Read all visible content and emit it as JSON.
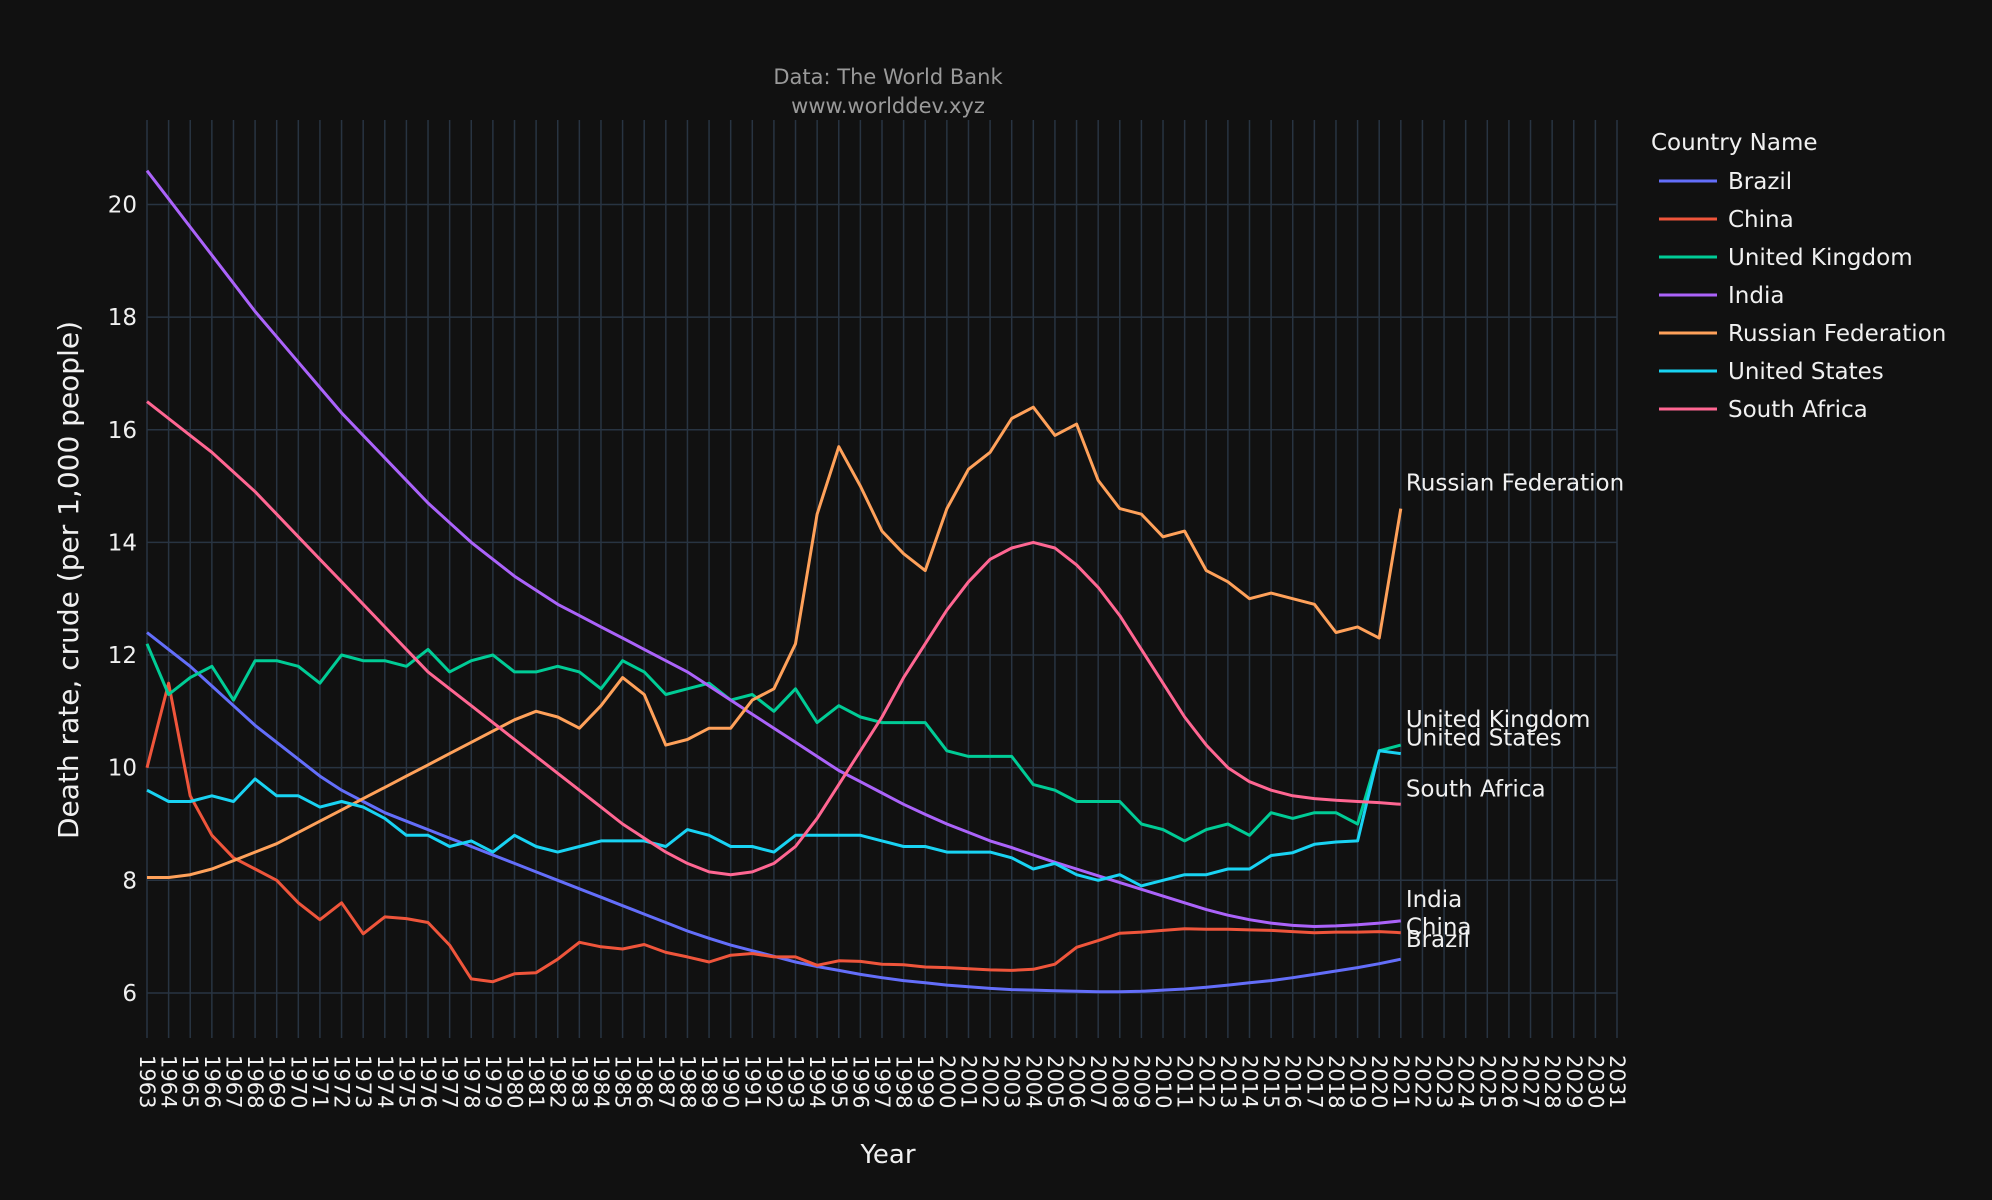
{
  "chart_data": {
    "type": "line",
    "title": "Data: The World Bank",
    "subtitle": "www.worlddev.xyz",
    "xlabel": "Year",
    "ylabel": "Death rate, crude (per 1,000 people)",
    "xlim": [
      1963,
      2031
    ],
    "ylim": [
      5.2,
      21.5
    ],
    "yticks": [
      6,
      8,
      10,
      12,
      14,
      16,
      18,
      20
    ],
    "grid": true,
    "legend_title": "Country Name",
    "legend_position": "top-right",
    "x": [
      1963,
      1964,
      1965,
      1966,
      1967,
      1968,
      1969,
      1970,
      1971,
      1972,
      1973,
      1974,
      1975,
      1976,
      1977,
      1978,
      1979,
      1980,
      1981,
      1982,
      1983,
      1984,
      1985,
      1986,
      1987,
      1988,
      1989,
      1990,
      1991,
      1992,
      1993,
      1994,
      1995,
      1996,
      1997,
      1998,
      1999,
      2000,
      2001,
      2002,
      2003,
      2004,
      2005,
      2006,
      2007,
      2008,
      2009,
      2010,
      2011,
      2012,
      2013,
      2014,
      2015,
      2016,
      2017,
      2018,
      2019,
      2020,
      2021
    ],
    "series": [
      {
        "name": "Brazil",
        "color": "#636efa",
        "end_label": "Brazil",
        "values": [
          12.4,
          12.1,
          11.8,
          11.45,
          11.1,
          10.75,
          10.45,
          10.15,
          9.85,
          9.6,
          9.4,
          9.2,
          9.05,
          8.9,
          8.75,
          8.6,
          8.45,
          8.3,
          8.15,
          8.0,
          7.85,
          7.7,
          7.55,
          7.4,
          7.25,
          7.1,
          6.97,
          6.85,
          6.75,
          6.65,
          6.55,
          6.47,
          6.4,
          6.33,
          6.27,
          6.22,
          6.18,
          6.14,
          6.11,
          6.08,
          6.06,
          6.05,
          6.04,
          6.03,
          6.02,
          6.02,
          6.03,
          6.05,
          6.07,
          6.1,
          6.14,
          6.18,
          6.22,
          6.27,
          6.33,
          6.39,
          6.45,
          6.52,
          6.6
        ]
      },
      {
        "name": "China",
        "color": "#ef553b",
        "end_label": "China",
        "values": [
          10.0,
          11.5,
          9.5,
          8.8,
          8.4,
          8.2,
          8.0,
          7.6,
          7.3,
          7.6,
          7.05,
          7.35,
          7.32,
          7.25,
          6.85,
          6.25,
          6.2,
          6.34,
          6.36,
          6.6,
          6.9,
          6.82,
          6.78,
          6.86,
          6.72,
          6.64,
          6.55,
          6.67,
          6.7,
          6.64,
          6.64,
          6.49,
          6.57,
          6.56,
          6.51,
          6.5,
          6.46,
          6.45,
          6.43,
          6.41,
          6.4,
          6.42,
          6.51,
          6.81,
          6.93,
          7.06,
          7.08,
          7.11,
          7.14,
          7.13,
          7.13,
          7.12,
          7.11,
          7.09,
          7.07,
          7.08,
          7.08,
          7.09,
          7.07
        ]
      },
      {
        "name": "United Kingdom",
        "color": "#00cc96",
        "end_label": "United Kingdom",
        "values": [
          12.2,
          11.3,
          11.6,
          11.8,
          11.2,
          11.9,
          11.9,
          11.8,
          11.5,
          12.0,
          11.9,
          11.9,
          11.8,
          12.1,
          11.7,
          11.9,
          12.0,
          11.7,
          11.7,
          11.8,
          11.7,
          11.4,
          11.9,
          11.7,
          11.3,
          11.4,
          11.5,
          11.2,
          11.3,
          11.0,
          11.4,
          10.8,
          11.1,
          10.9,
          10.8,
          10.8,
          10.8,
          10.3,
          10.2,
          10.2,
          10.2,
          9.7,
          9.6,
          9.4,
          9.4,
          9.4,
          9.0,
          8.9,
          8.7,
          8.9,
          9.0,
          8.8,
          9.2,
          9.1,
          9.2,
          9.2,
          9.0,
          10.3,
          10.4
        ]
      },
      {
        "name": "India",
        "color": "#ab63fa",
        "end_label": "India",
        "values": [
          20.6,
          20.1,
          19.6,
          19.1,
          18.6,
          18.1,
          17.65,
          17.2,
          16.75,
          16.3,
          15.9,
          15.5,
          15.1,
          14.7,
          14.35,
          14.0,
          13.7,
          13.4,
          13.15,
          12.9,
          12.7,
          12.5,
          12.3,
          12.1,
          11.9,
          11.7,
          11.45,
          11.2,
          10.95,
          10.7,
          10.45,
          10.2,
          9.95,
          9.75,
          9.55,
          9.35,
          9.17,
          9.0,
          8.85,
          8.7,
          8.58,
          8.45,
          8.32,
          8.2,
          8.08,
          7.96,
          7.84,
          7.72,
          7.6,
          7.48,
          7.38,
          7.3,
          7.24,
          7.2,
          7.18,
          7.19,
          7.21,
          7.24,
          7.28
        ]
      },
      {
        "name": "Russian Federation",
        "color": "#ffa15a",
        "end_label": "Russian Federation",
        "values": [
          8.05,
          8.05,
          8.1,
          8.2,
          8.35,
          8.5,
          8.65,
          8.85,
          9.05,
          9.25,
          9.45,
          9.65,
          9.85,
          10.05,
          10.25,
          10.45,
          10.65,
          10.85,
          11.0,
          10.9,
          10.7,
          11.1,
          11.6,
          11.3,
          10.4,
          10.5,
          10.7,
          10.7,
          11.2,
          11.4,
          12.2,
          14.5,
          15.7,
          15.0,
          14.2,
          13.8,
          13.5,
          14.6,
          15.3,
          15.6,
          16.2,
          16.4,
          15.9,
          16.1,
          15.1,
          14.6,
          14.5,
          14.1,
          14.2,
          13.5,
          13.3,
          13.0,
          13.1,
          13.0,
          12.9,
          12.4,
          12.5,
          12.3,
          14.6
        ]
      },
      {
        "name": "United States",
        "color": "#19d3f3",
        "end_label": "United States",
        "values": [
          9.6,
          9.4,
          9.4,
          9.5,
          9.4,
          9.8,
          9.5,
          9.5,
          9.3,
          9.4,
          9.3,
          9.1,
          8.8,
          8.8,
          8.6,
          8.7,
          8.5,
          8.8,
          8.6,
          8.5,
          8.6,
          8.7,
          8.7,
          8.7,
          8.6,
          8.9,
          8.8,
          8.6,
          8.6,
          8.5,
          8.8,
          8.8,
          8.8,
          8.8,
          8.7,
          8.6,
          8.6,
          8.5,
          8.5,
          8.5,
          8.4,
          8.2,
          8.3,
          8.1,
          8.0,
          8.1,
          7.9,
          8.0,
          8.1,
          8.1,
          8.2,
          8.2,
          8.44,
          8.49,
          8.64,
          8.68,
          8.7,
          10.3,
          10.25
        ]
      },
      {
        "name": "South Africa",
        "color": "#ff6692",
        "end_label": "South Africa",
        "values": [
          16.5,
          16.2,
          15.9,
          15.6,
          15.25,
          14.9,
          14.5,
          14.1,
          13.7,
          13.3,
          12.9,
          12.5,
          12.1,
          11.7,
          11.4,
          11.1,
          10.8,
          10.5,
          10.2,
          9.9,
          9.6,
          9.3,
          9.0,
          8.75,
          8.5,
          8.3,
          8.15,
          8.1,
          8.15,
          8.3,
          8.6,
          9.1,
          9.7,
          10.3,
          10.9,
          11.6,
          12.2,
          12.8,
          13.3,
          13.7,
          13.9,
          14.0,
          13.9,
          13.6,
          13.2,
          12.7,
          12.1,
          11.5,
          10.9,
          10.4,
          10.0,
          9.75,
          9.6,
          9.5,
          9.45,
          9.42,
          9.4,
          9.38,
          9.35
        ]
      }
    ]
  }
}
